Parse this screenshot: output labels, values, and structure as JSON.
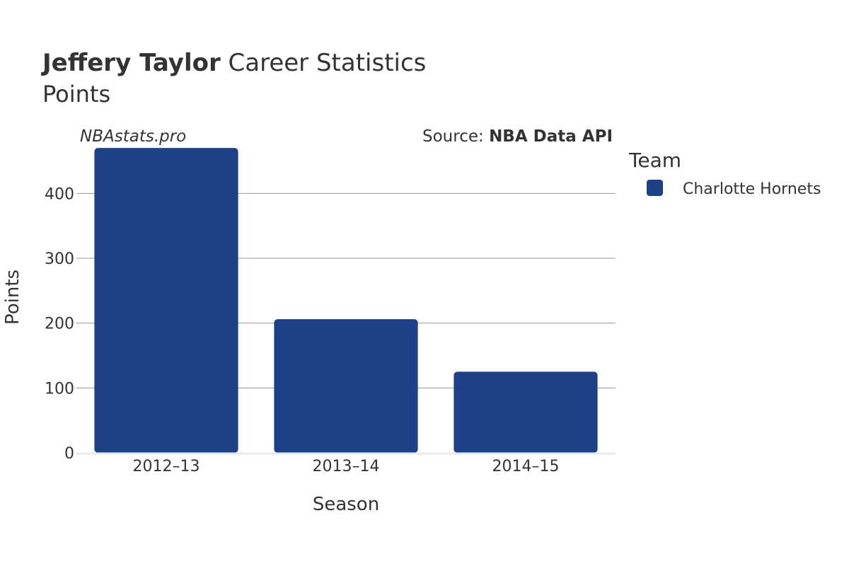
{
  "header": {
    "player_name": "Jeffery Taylor",
    "title_rest": " Career Statistics",
    "subtitle": "Points"
  },
  "watermark": "NBAstats.pro",
  "source": {
    "prefix": "Source: ",
    "name": "NBA Data API"
  },
  "legend": {
    "title": "Team",
    "placement": "right"
  },
  "colors": {
    "bar": "#1c4187",
    "grid": "#999999",
    "text": "#333333",
    "axis_line": "#e8e8ee"
  },
  "chart_data": {
    "type": "bar",
    "title": "Jeffery Taylor Career Statistics",
    "subtitle": "Points",
    "xlabel": "Season",
    "ylabel": "Points",
    "categories": [
      "2012–13",
      "2013–14",
      "2014–15"
    ],
    "series": [
      {
        "name": "Charlotte Hornets",
        "values": [
          470,
          206,
          125
        ]
      }
    ],
    "yticks": [
      0,
      100,
      200,
      300,
      400
    ],
    "ylim": [
      0,
      480
    ],
    "grid": true
  }
}
